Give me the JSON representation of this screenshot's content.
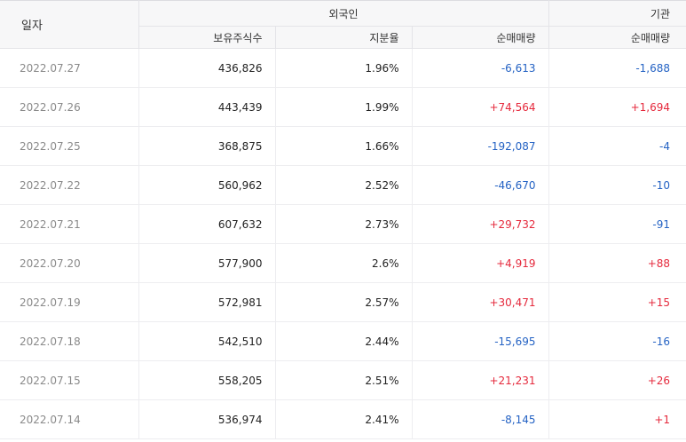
{
  "headers": {
    "date": "일자",
    "foreign_group": "외국인",
    "institution_group": "기관",
    "holdings": "보유주식수",
    "ratio": "지분율",
    "foreign_net": "순매매량",
    "institution_net": "순매매량"
  },
  "colors": {
    "positive": "#e5293c",
    "negative": "#2563c4"
  },
  "rows": [
    {
      "date": "2022.07.27",
      "holdings": "436,826",
      "ratio": "1.96%",
      "foreign_net": "-6,613",
      "institution_net": "-1,688"
    },
    {
      "date": "2022.07.26",
      "holdings": "443,439",
      "ratio": "1.99%",
      "foreign_net": "+74,564",
      "institution_net": "+1,694"
    },
    {
      "date": "2022.07.25",
      "holdings": "368,875",
      "ratio": "1.66%",
      "foreign_net": "-192,087",
      "institution_net": "-4"
    },
    {
      "date": "2022.07.22",
      "holdings": "560,962",
      "ratio": "2.52%",
      "foreign_net": "-46,670",
      "institution_net": "-10"
    },
    {
      "date": "2022.07.21",
      "holdings": "607,632",
      "ratio": "2.73%",
      "foreign_net": "+29,732",
      "institution_net": "-91"
    },
    {
      "date": "2022.07.20",
      "holdings": "577,900",
      "ratio": "2.6%",
      "foreign_net": "+4,919",
      "institution_net": "+88"
    },
    {
      "date": "2022.07.19",
      "holdings": "572,981",
      "ratio": "2.57%",
      "foreign_net": "+30,471",
      "institution_net": "+15"
    },
    {
      "date": "2022.07.18",
      "holdings": "542,510",
      "ratio": "2.44%",
      "foreign_net": "-15,695",
      "institution_net": "-16"
    },
    {
      "date": "2022.07.15",
      "holdings": "558,205",
      "ratio": "2.51%",
      "foreign_net": "+21,231",
      "institution_net": "+26"
    },
    {
      "date": "2022.07.14",
      "holdings": "536,974",
      "ratio": "2.41%",
      "foreign_net": "-8,145",
      "institution_net": "+1"
    }
  ]
}
